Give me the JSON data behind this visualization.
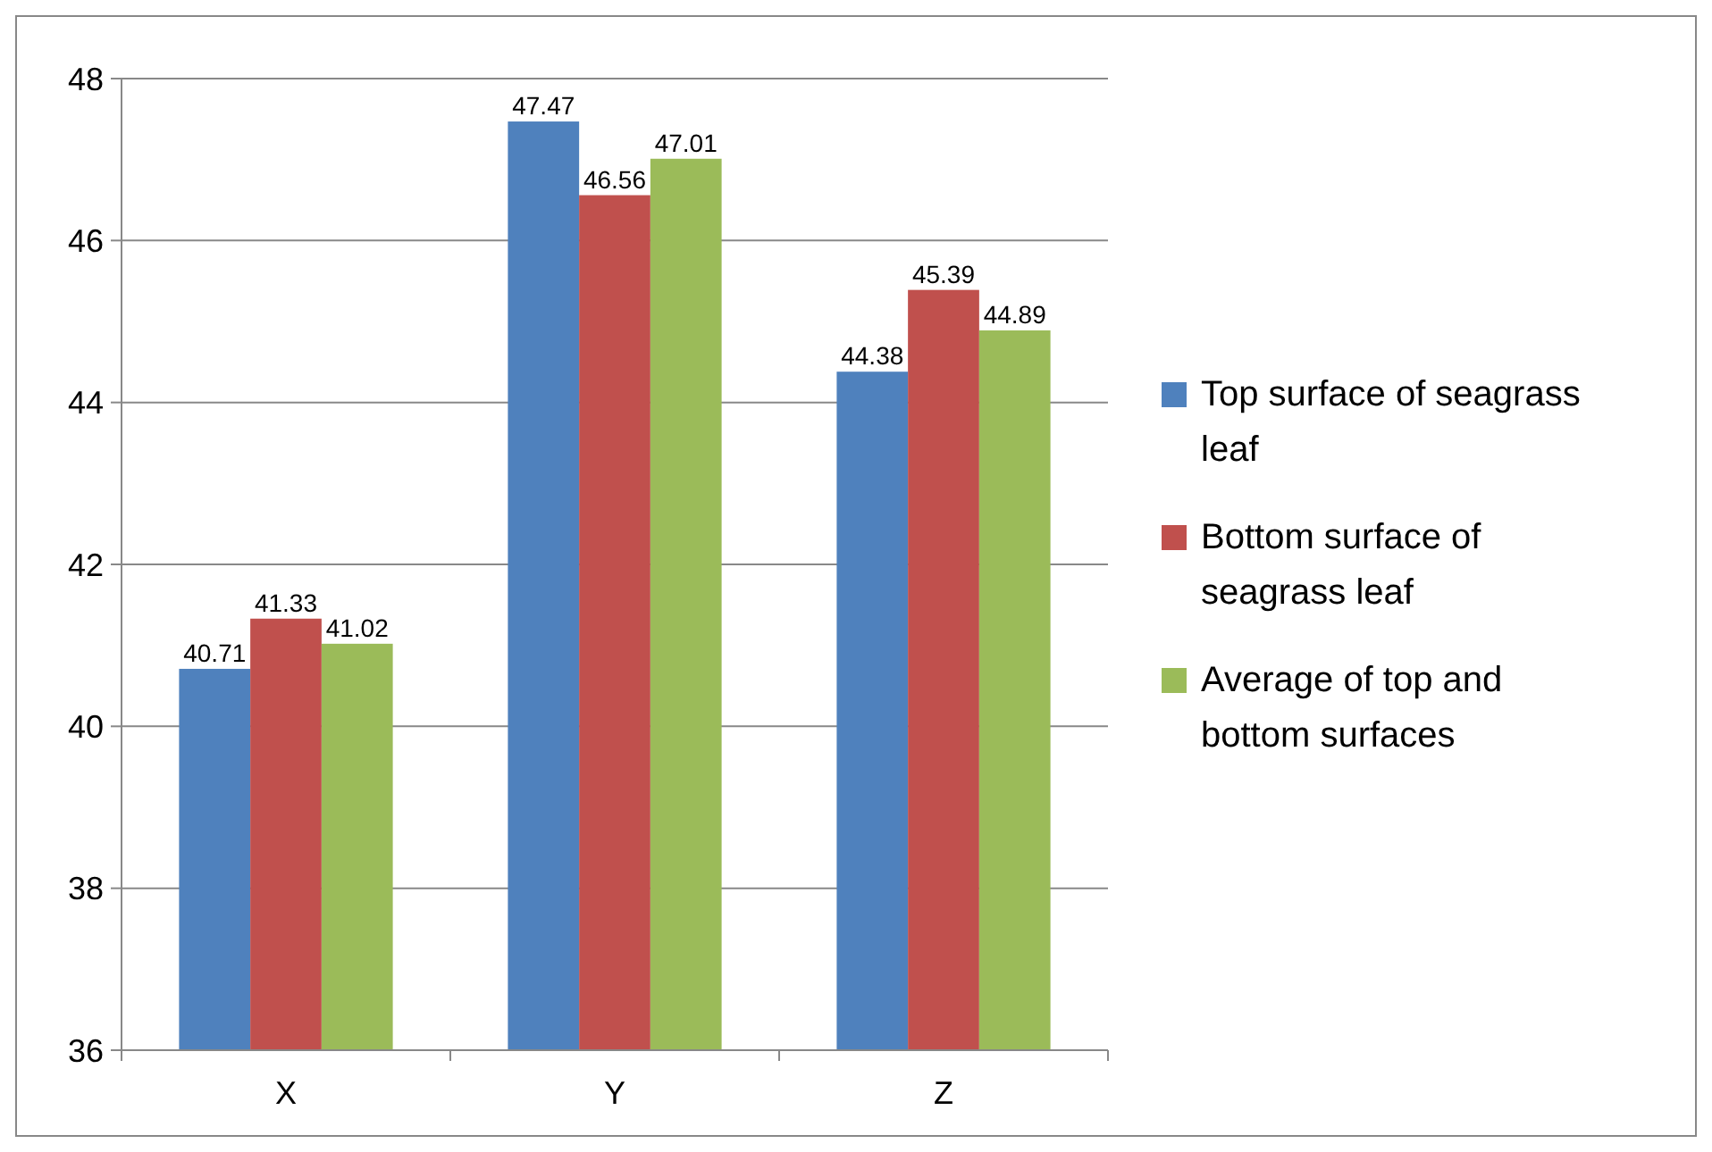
{
  "chart_data": {
    "type": "bar",
    "categories": [
      "X",
      "Y",
      "Z"
    ],
    "series": [
      {
        "name": "Top surface of seagrass leaf",
        "color": "#4f81bd",
        "values": [
          40.71,
          47.47,
          44.38
        ]
      },
      {
        "name": "Bottom surface of seagrass leaf",
        "color": "#c0504d",
        "values": [
          41.33,
          46.56,
          45.39
        ]
      },
      {
        "name": "Average of top and bottom surfaces",
        "color": "#9bbb59",
        "values": [
          41.02,
          47.01,
          44.89
        ]
      }
    ],
    "ylim": [
      36,
      48
    ],
    "yticks": [
      36,
      38,
      40,
      42,
      44,
      46,
      48
    ],
    "grid": "y",
    "legend": "right",
    "data_labels": true
  }
}
